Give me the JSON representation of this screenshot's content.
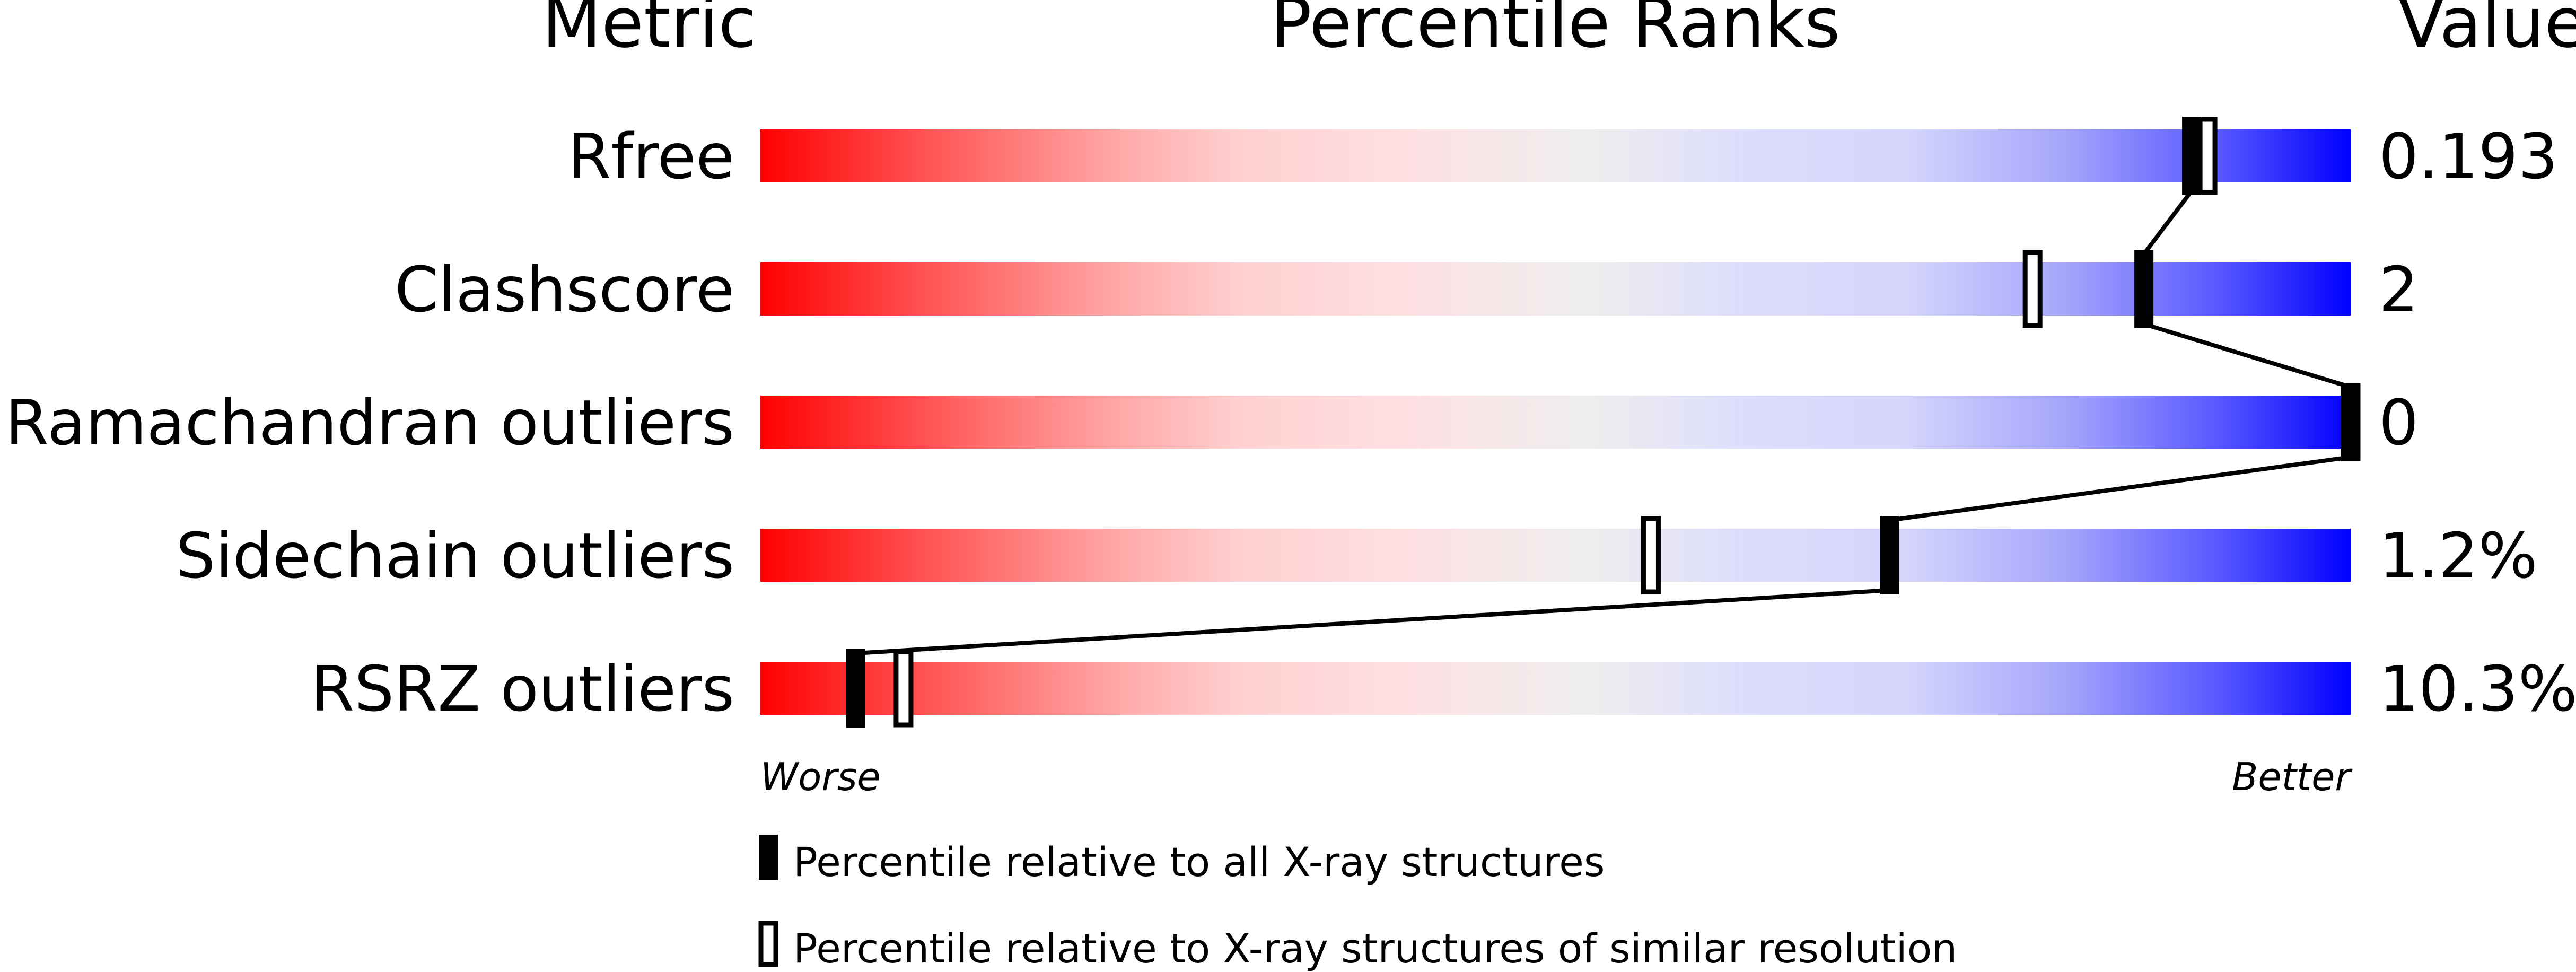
{
  "chart_data": {
    "type": "bar",
    "title": "Percentile Ranks",
    "header_metric": "Metric",
    "header_percentile": "Percentile Ranks",
    "header_value": "Value",
    "xlim": [
      0,
      100
    ],
    "axis_left_label": "Worse",
    "axis_right_label": "Better",
    "categories": [
      "Rfree",
      "Clashscore",
      "Ramachandran outliers",
      "Sidechain outliers",
      "RSRZ outliers"
    ],
    "values_text": [
      "0.193",
      "2",
      "0",
      "1.2%",
      "10.3%"
    ],
    "series": [
      {
        "name": "Percentile relative to all X-ray structures",
        "marker": "filled",
        "values": [
          90,
          87,
          100,
          71,
          6
        ]
      },
      {
        "name": "Percentile relative to X-ray structures of similar resolution",
        "marker": "open",
        "values": [
          91,
          80,
          100,
          56,
          9
        ]
      }
    ],
    "colors": {
      "worse": "#ff0000",
      "middle": "#eeeeee",
      "better": "#0000ff",
      "marker": "#000000"
    },
    "legend_position": "bottom"
  }
}
